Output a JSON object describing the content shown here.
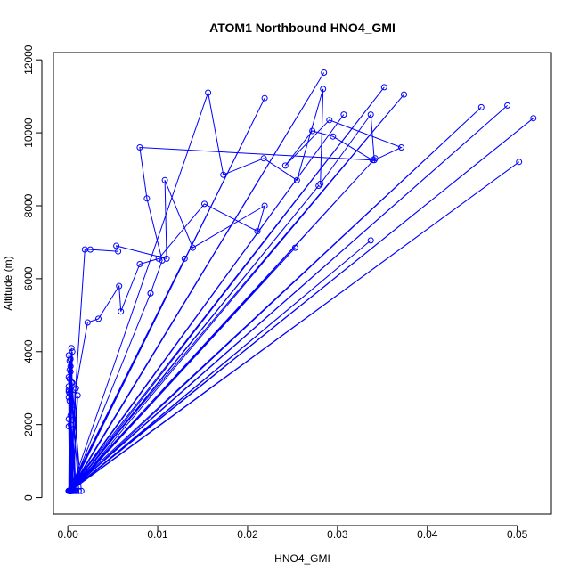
{
  "chart_data": {
    "type": "line",
    "title": "ATOM1 Northbound HNO4_GMI",
    "xlabel": "HNO4_GMI",
    "ylabel": "Altitude (m)",
    "xlim": [
      -0.0016,
      0.0538
    ],
    "ylim": [
      -450,
      12200
    ],
    "x_ticks": [
      "0.00",
      "0.01",
      "0.02",
      "0.03",
      "0.04",
      "0.05"
    ],
    "y_ticks": [
      "0",
      "2000",
      "4000",
      "6000",
      "8000",
      "10000",
      "12000"
    ],
    "grid": false,
    "marker": "open-circle",
    "series": [
      {
        "color": "#0000ff",
        "x": [
          0.0002,
          0.0001,
          0.0002,
          0.0003,
          0.0005,
          0.0008,
          0.0012,
          0.0002,
          0.0001,
          0.0003,
          0.0006,
          0.0011,
          0.0002,
          0.0004,
          0.0009,
          0.0001,
          0.0003,
          0.0005,
          0.0002,
          0.0001,
          0.0004,
          0.0002,
          0.0003,
          0.0001,
          0.0002,
          0.0001,
          0.0002,
          0.0007,
          0.0015,
          0.0003,
          0.0002,
          0.0005,
          0.0008,
          0.0001,
          0.0003,
          0.0002,
          0.0001,
          0.0004,
          0.0002,
          0.0003,
          0.0001,
          0.0002,
          0.0006,
          0.0002,
          0.0001,
          0.0003,
          0.0002,
          0.0001,
          0.0002,
          0.0003,
          0.0002,
          0.0001
        ],
        "y": [
          180,
          2900,
          180,
          3450,
          180,
          2950,
          180,
          3750,
          180,
          2250,
          180,
          2800,
          180,
          3150,
          180,
          2950,
          180,
          4000,
          180,
          3900,
          180,
          3500,
          180,
          2150,
          180,
          1950,
          180,
          2400,
          180,
          3600,
          180,
          3150,
          180,
          3300,
          180,
          2850,
          180,
          4100,
          180,
          2000,
          180,
          3250,
          180,
          2650,
          180,
          3800,
          180,
          2750,
          180,
          2900,
          180,
          3050
        ]
      },
      {
        "color": "#0000ff",
        "x": [
          0.0003,
          0.0285,
          0.0002,
          0.0219,
          0.0003,
          0.0352,
          0.0001,
          0.0374,
          0.0004,
          0.0337,
          0.0003,
          0.0518,
          0.0002,
          0.0489,
          0.0001,
          0.046,
          0.0003,
          0.0502,
          0.0002,
          0.0342,
          0.0004,
          0.0253,
          0.0003,
          0.0279,
          0.0002,
          0.0307,
          0.0001,
          0.013,
          0.0003,
          0.0092
        ],
        "y": [
          180,
          11650,
          180,
          10950,
          180,
          11250,
          180,
          11050,
          180,
          7050,
          180,
          10400,
          180,
          10750,
          180,
          10700,
          180,
          9200,
          180,
          9300,
          180,
          6850,
          180,
          8550,
          180,
          10500,
          180,
          6550,
          180,
          5600
        ]
      },
      {
        "color": "#0000ff",
        "x": [
          0.0003,
          0.0156,
          0.0173,
          0.0218,
          0.0255,
          0.0284,
          0.0281,
          0.0337,
          0.0341,
          0.0371,
          0.0291,
          0.0242,
          0.0272,
          0.0295,
          0.0339,
          0.008,
          0.0088,
          0.0105,
          0.0092
        ],
        "y": [
          180,
          11100,
          8850,
          9300,
          8700,
          11200,
          8600,
          10500,
          9250,
          9600,
          10350,
          9100,
          10050,
          9900,
          9250,
          9600,
          8200,
          6500,
          5600
        ]
      },
      {
        "color": "#0000ff",
        "x": [
          0.0001,
          0.0019,
          0.0025,
          0.0056,
          0.0054,
          0.011,
          0.0108,
          0.0139,
          0.0219,
          0.0211,
          0.0152,
          0.0101,
          0.008,
          0.0059,
          0.0057,
          0.0034,
          0.0022,
          0.0009,
          0.0002
        ],
        "y": [
          180,
          6800,
          6800,
          6750,
          6900,
          6550,
          8700,
          6850,
          8000,
          7300,
          8050,
          6550,
          6400,
          5100,
          5800,
          4900,
          4800,
          3000,
          180
        ]
      }
    ]
  }
}
